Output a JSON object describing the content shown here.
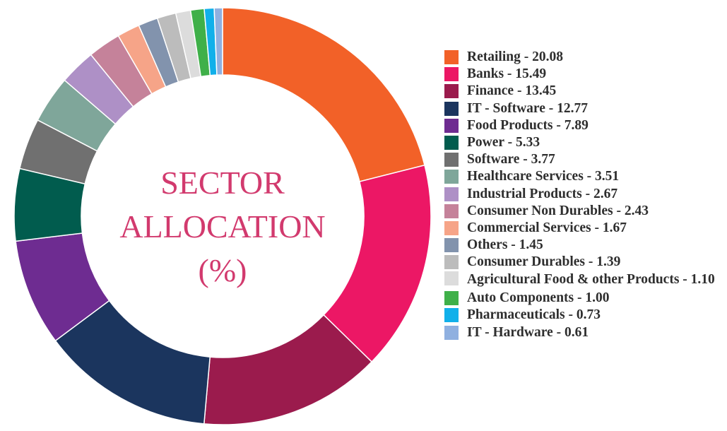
{
  "chart_data": {
    "type": "pie",
    "title_lines": [
      "SECTOR",
      "ALLOCATION",
      "(%)"
    ],
    "slices": [
      {
        "label": "Retailing - 20.08",
        "name": "Retailing",
        "value": 20.08,
        "color": "#f26128"
      },
      {
        "label": "Banks - 15.49",
        "name": "Banks",
        "value": 15.49,
        "color": "#ec1765"
      },
      {
        "label": "Finance - 13.45",
        "name": "Finance",
        "value": 13.45,
        "color": "#9b1b4d"
      },
      {
        "label": "IT - Software - 12.77",
        "name": "IT - Software",
        "value": 12.77,
        "color": "#1b355e"
      },
      {
        "label": "Food Products - 7.89",
        "name": "Food Products",
        "value": 7.89,
        "color": "#6e2c91"
      },
      {
        "label": "Power - 5.33",
        "name": "Power",
        "value": 5.33,
        "color": "#015c4e"
      },
      {
        "label": "Software - 3.77",
        "name": "Software",
        "value": 3.77,
        "color": "#707070"
      },
      {
        "label": "Healthcare Services - 3.51",
        "name": "Healthcare Services",
        "value": 3.51,
        "color": "#7fa69a"
      },
      {
        "label": "Industrial Products - 2.67",
        "name": "Industrial Products",
        "value": 2.67,
        "color": "#ae90c6"
      },
      {
        "label": "Consumer Non Durables - 2.43",
        "name": "Consumer Non Durables",
        "value": 2.43,
        "color": "#c5829a"
      },
      {
        "label": "Commercial Services - 1.67",
        "name": "Commercial Services",
        "value": 1.67,
        "color": "#f6a488"
      },
      {
        "label": "Others - 1.45",
        "name": "Others",
        "value": 1.45,
        "color": "#8293ad"
      },
      {
        "label": "Consumer Durables - 1.39",
        "name": "Consumer Durables",
        "value": 1.39,
        "color": "#bcbcbc"
      },
      {
        "label": "Agricultural Food & other Products - 1.10",
        "name": "Agricultural Food & other Products",
        "value": 1.1,
        "color": "#dcdcdc"
      },
      {
        "label": "Auto Components - 1.00",
        "name": "Auto Components",
        "value": 1.0,
        "color": "#3fb049"
      },
      {
        "label": "Pharmaceuticals - 0.73",
        "name": "Pharmaceuticals",
        "value": 0.73,
        "color": "#11b0ea"
      },
      {
        "label": "IT - Hardware - 0.61",
        "name": "IT - Hardware",
        "value": 0.61,
        "color": "#8fb0e0"
      }
    ],
    "legend_position": "right",
    "hole": "large",
    "title_color": "#d23a6e"
  }
}
